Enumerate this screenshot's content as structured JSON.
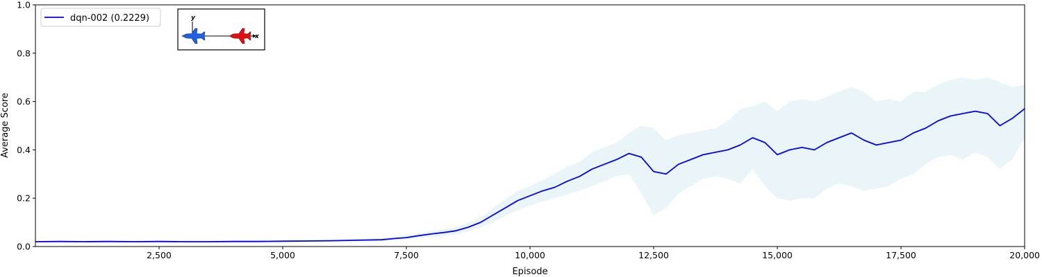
{
  "chart_data": {
    "type": "line",
    "title": "",
    "xlabel": "Episode",
    "ylabel": "Average Score",
    "xlim": [
      0,
      20000
    ],
    "ylim": [
      0,
      1.0
    ],
    "grid": false,
    "legend_placement": "top-left",
    "x_ticks": [
      2500,
      5000,
      7500,
      10000,
      12500,
      15000,
      17500,
      20000
    ],
    "x_tick_labels": [
      "2,500",
      "5,000",
      "7,500",
      "10,000",
      "12,500",
      "15,000",
      "17,500",
      "20,000"
    ],
    "y_ticks": [
      0.0,
      0.2,
      0.4,
      0.6,
      0.8,
      1.0
    ],
    "y_tick_labels": [
      "0.0",
      "0.2",
      "0.4",
      "0.6",
      "0.8",
      "1.0"
    ],
    "series": [
      {
        "name": "dqn-002 (0.2229)",
        "color": "#0000ee",
        "band_color": "#add8e6",
        "x": [
          0,
          500,
          1000,
          1500,
          2000,
          2500,
          3000,
          3500,
          4000,
          4500,
          5000,
          5500,
          6000,
          6500,
          7000,
          7250,
          7500,
          7750,
          8000,
          8250,
          8500,
          8750,
          9000,
          9250,
          9500,
          9750,
          10000,
          10250,
          10500,
          10750,
          11000,
          11250,
          11500,
          11750,
          12000,
          12250,
          12500,
          12750,
          13000,
          13250,
          13500,
          13750,
          14000,
          14250,
          14500,
          14750,
          15000,
          15250,
          15500,
          15750,
          16000,
          16250,
          16500,
          16750,
          17000,
          17250,
          17500,
          17750,
          18000,
          18250,
          18500,
          18750,
          19000,
          19250,
          19500,
          19750,
          20000
        ],
        "y": [
          0.02,
          0.021,
          0.02,
          0.021,
          0.02,
          0.021,
          0.02,
          0.02,
          0.021,
          0.021,
          0.022,
          0.023,
          0.024,
          0.026,
          0.028,
          0.033,
          0.037,
          0.045,
          0.052,
          0.058,
          0.065,
          0.08,
          0.1,
          0.13,
          0.16,
          0.19,
          0.21,
          0.23,
          0.245,
          0.27,
          0.29,
          0.32,
          0.34,
          0.36,
          0.385,
          0.37,
          0.31,
          0.3,
          0.34,
          0.36,
          0.38,
          0.39,
          0.4,
          0.42,
          0.45,
          0.43,
          0.38,
          0.4,
          0.41,
          0.4,
          0.43,
          0.45,
          0.47,
          0.44,
          0.42,
          0.43,
          0.44,
          0.47,
          0.49,
          0.52,
          0.54,
          0.55,
          0.56,
          0.55,
          0.5,
          0.53,
          0.57
        ],
        "band_lower": [
          0.017,
          0.017,
          0.017,
          0.017,
          0.017,
          0.017,
          0.017,
          0.017,
          0.017,
          0.018,
          0.018,
          0.019,
          0.02,
          0.021,
          0.022,
          0.026,
          0.029,
          0.035,
          0.04,
          0.045,
          0.05,
          0.062,
          0.08,
          0.1,
          0.125,
          0.15,
          0.17,
          0.185,
          0.2,
          0.215,
          0.23,
          0.25,
          0.27,
          0.29,
          0.3,
          0.22,
          0.13,
          0.16,
          0.22,
          0.25,
          0.28,
          0.29,
          0.28,
          0.26,
          0.32,
          0.25,
          0.2,
          0.19,
          0.2,
          0.2,
          0.24,
          0.26,
          0.25,
          0.23,
          0.24,
          0.25,
          0.28,
          0.3,
          0.34,
          0.37,
          0.38,
          0.36,
          0.39,
          0.37,
          0.32,
          0.36,
          0.45
        ],
        "band_upper": [
          0.023,
          0.024,
          0.023,
          0.024,
          0.023,
          0.024,
          0.023,
          0.023,
          0.024,
          0.024,
          0.026,
          0.027,
          0.028,
          0.031,
          0.034,
          0.04,
          0.045,
          0.055,
          0.064,
          0.071,
          0.08,
          0.098,
          0.12,
          0.16,
          0.195,
          0.23,
          0.25,
          0.275,
          0.3,
          0.33,
          0.35,
          0.39,
          0.41,
          0.43,
          0.47,
          0.5,
          0.49,
          0.44,
          0.46,
          0.47,
          0.48,
          0.49,
          0.52,
          0.57,
          0.58,
          0.6,
          0.56,
          0.6,
          0.61,
          0.6,
          0.62,
          0.64,
          0.66,
          0.64,
          0.6,
          0.61,
          0.6,
          0.64,
          0.64,
          0.67,
          0.69,
          0.7,
          0.69,
          0.7,
          0.68,
          0.66,
          0.67
        ]
      }
    ]
  }
}
